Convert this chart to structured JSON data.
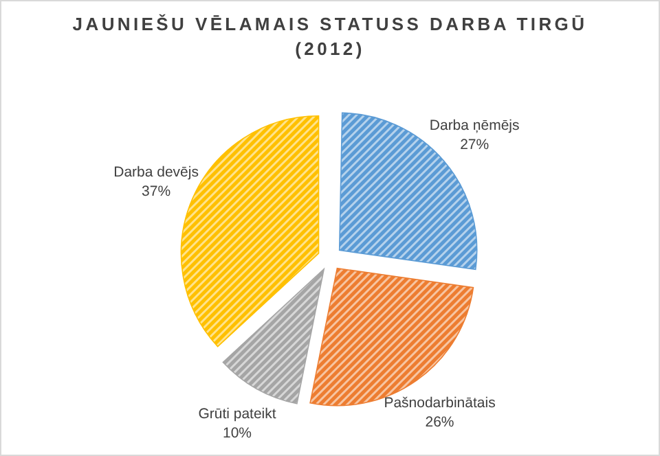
{
  "chart_data": {
    "type": "pie",
    "title": "JAUNIEŠU VĒLAMAIS STATUSS DARBA TIRGŪ (2012)",
    "categories": [
      "Darba ņēmējs",
      "Pašnodarbinātais",
      "Grūti pateikt",
      "Darba devējs"
    ],
    "values": [
      27,
      26,
      10,
      37
    ],
    "value_labels": [
      "27%",
      "26%",
      "10%",
      "37%"
    ],
    "colors": [
      "#5b9bd5",
      "#ed7d31",
      "#a5a5a5",
      "#ffc000"
    ]
  }
}
